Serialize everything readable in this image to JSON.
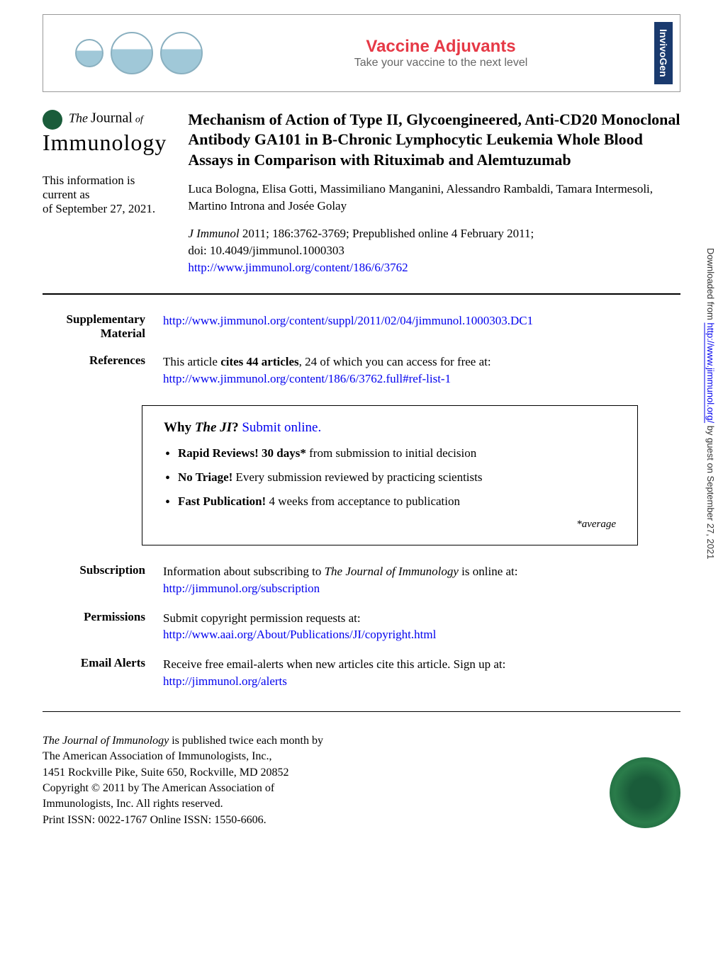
{
  "banner": {
    "title": "Vaccine Adjuvants",
    "subtitle": "Take your vaccine to the next level",
    "brand": "InvivoGen"
  },
  "journal_logo": {
    "the": "The",
    "journal": "Journal",
    "of": "of",
    "immunology": "Immunology"
  },
  "current_info": {
    "line1": "This information is current as",
    "line2": "of September 27, 2021."
  },
  "article": {
    "title": "Mechanism of Action of Type II, Glycoengineered, Anti-CD20 Monoclonal Antibody GA101 in B-Chronic Lymphocytic Leukemia Whole Blood Assays in Comparison with Rituximab and Alemtuzumab",
    "authors": "Luca Bologna, Elisa Gotti, Massimiliano Manganini, Alessandro Rambaldi, Tamara Intermesoli, Martino Introna and Josée Golay",
    "journal_abbr": "J Immunol",
    "cite_text": "2011; 186:3762-3769; Prepublished online 4 February 2011;",
    "doi": "doi: 10.4049/jimmunol.1000303",
    "url": "http://www.jimmunol.org/content/186/6/3762"
  },
  "sections": {
    "supp_label": "Supplementary Material",
    "supp_url": "http://www.jimmunol.org/content/suppl/2011/02/04/jimmunol.1000303.DC1",
    "refs_label": "References",
    "refs_text_1": "This article ",
    "refs_bold": "cites 44 articles",
    "refs_text_2": ", 24 of which you can access for free at:",
    "refs_url": "http://www.jimmunol.org/content/186/6/3762.full#ref-list-1",
    "sub_label": "Subscription",
    "sub_text": "Information about subscribing to ",
    "sub_italic": "The Journal of Immunology",
    "sub_text2": " is online at:",
    "sub_url": "http://jimmunol.org/subscription",
    "perm_label": "Permissions",
    "perm_text": "Submit copyright permission requests at:",
    "perm_url": "http://www.aai.org/About/Publications/JI/copyright.html",
    "alerts_label": "Email Alerts",
    "alerts_text": "Receive free email-alerts when new articles cite this article. Sign up at:",
    "alerts_url": "http://jimmunol.org/alerts"
  },
  "why_box": {
    "why": "Why ",
    "the_ji": "The JI",
    "q": "? ",
    "submit": "Submit online.",
    "item1_bold": "Rapid Reviews! 30 days*",
    "item1_rest": " from submission to initial decision",
    "item2_bold": "No Triage!",
    "item2_rest": " Every submission reviewed by practicing scientists",
    "item3_bold": "Fast Publication!",
    "item3_rest": " 4 weeks from acceptance to publication",
    "average": "*average"
  },
  "footer": {
    "line1_italic": "The Journal of Immunology",
    "line1_rest": " is published twice each month by",
    "line2": "The American Association of Immunologists, Inc.,",
    "line3": "1451 Rockville Pike, Suite 650, Rockville, MD 20852",
    "line4": "Copyright © 2011 by The American Association of",
    "line5": "Immunologists, Inc. All rights reserved.",
    "line6": "Print ISSN: 0022-1767 Online ISSN: 1550-6606."
  },
  "side": {
    "pre": "Downloaded from ",
    "url": "http://www.jimmunol.org/",
    "post": " by guest on September 27, 2021"
  }
}
